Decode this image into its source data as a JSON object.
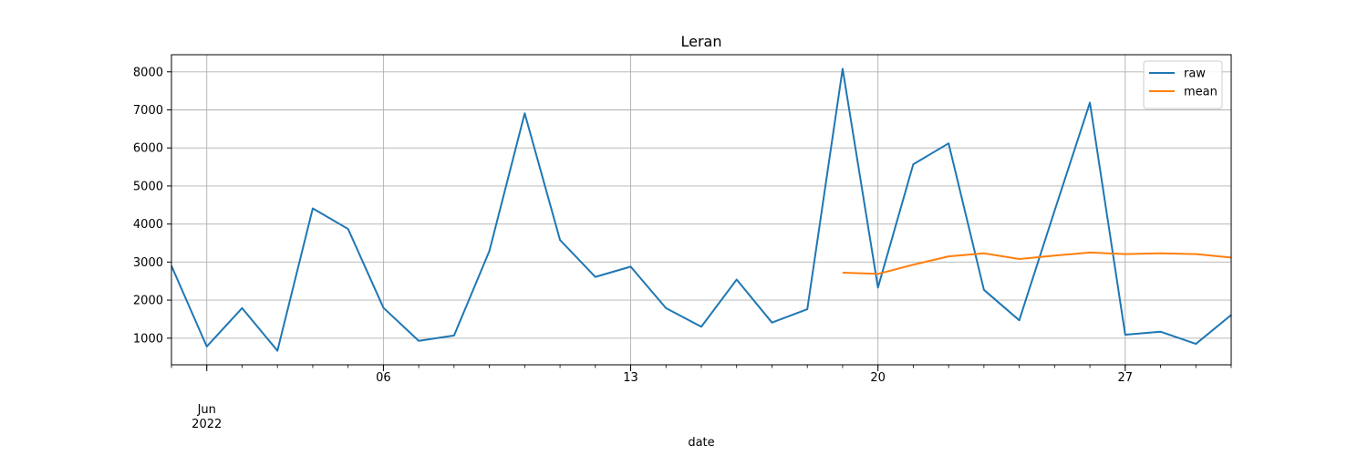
{
  "chart_data": {
    "type": "line",
    "title": "Leran",
    "xlabel": "date",
    "ylabel": "",
    "x_start": "2022-05-31",
    "x": [
      "2022-05-31",
      "2022-06-01",
      "2022-06-02",
      "2022-06-03",
      "2022-06-04",
      "2022-06-05",
      "2022-06-06",
      "2022-06-07",
      "2022-06-08",
      "2022-06-09",
      "2022-06-10",
      "2022-06-11",
      "2022-06-12",
      "2022-06-13",
      "2022-06-14",
      "2022-06-15",
      "2022-06-16",
      "2022-06-17",
      "2022-06-18",
      "2022-06-19",
      "2022-06-20",
      "2022-06-21",
      "2022-06-22",
      "2022-06-23",
      "2022-06-24",
      "2022-06-25",
      "2022-06-26",
      "2022-06-27",
      "2022-06-28",
      "2022-06-29",
      "2022-06-30"
    ],
    "xlim": [
      "2022-05-31",
      "2022-06-30"
    ],
    "ylim": [
      300,
      8450
    ],
    "yticks": [
      1000,
      2000,
      3000,
      4000,
      5000,
      6000,
      7000,
      8000
    ],
    "xticks_major": [
      {
        "date": "2022-06-01",
        "line1": "Jun",
        "line2": "2022"
      },
      {
        "date": "2022-06-06",
        "line1": "06",
        "line2": ""
      },
      {
        "date": "2022-06-13",
        "line1": "13",
        "line2": ""
      },
      {
        "date": "2022-06-20",
        "line1": "20",
        "line2": ""
      },
      {
        "date": "2022-06-27",
        "line1": "27",
        "line2": ""
      }
    ],
    "grid": true,
    "legend_position": "top-right",
    "series": [
      {
        "name": "raw",
        "color": "#1f77b4",
        "values": [
          2900,
          780,
          1790,
          670,
          4410,
          3870,
          1800,
          930,
          1070,
          3290,
          6910,
          3580,
          2610,
          2880,
          1790,
          1300,
          2540,
          1410,
          1760,
          8080,
          2330,
          5570,
          6120,
          2270,
          1470,
          4350,
          7190,
          1090,
          1170,
          850,
          1610
        ]
      },
      {
        "name": "mean",
        "color": "#ff7f0e",
        "values": [
          null,
          null,
          null,
          null,
          null,
          null,
          null,
          null,
          null,
          null,
          null,
          null,
          null,
          null,
          null,
          null,
          null,
          null,
          null,
          2720,
          2690,
          2930,
          3150,
          3230,
          3080,
          3170,
          3250,
          3210,
          3230,
          3210,
          3120
        ]
      }
    ]
  }
}
